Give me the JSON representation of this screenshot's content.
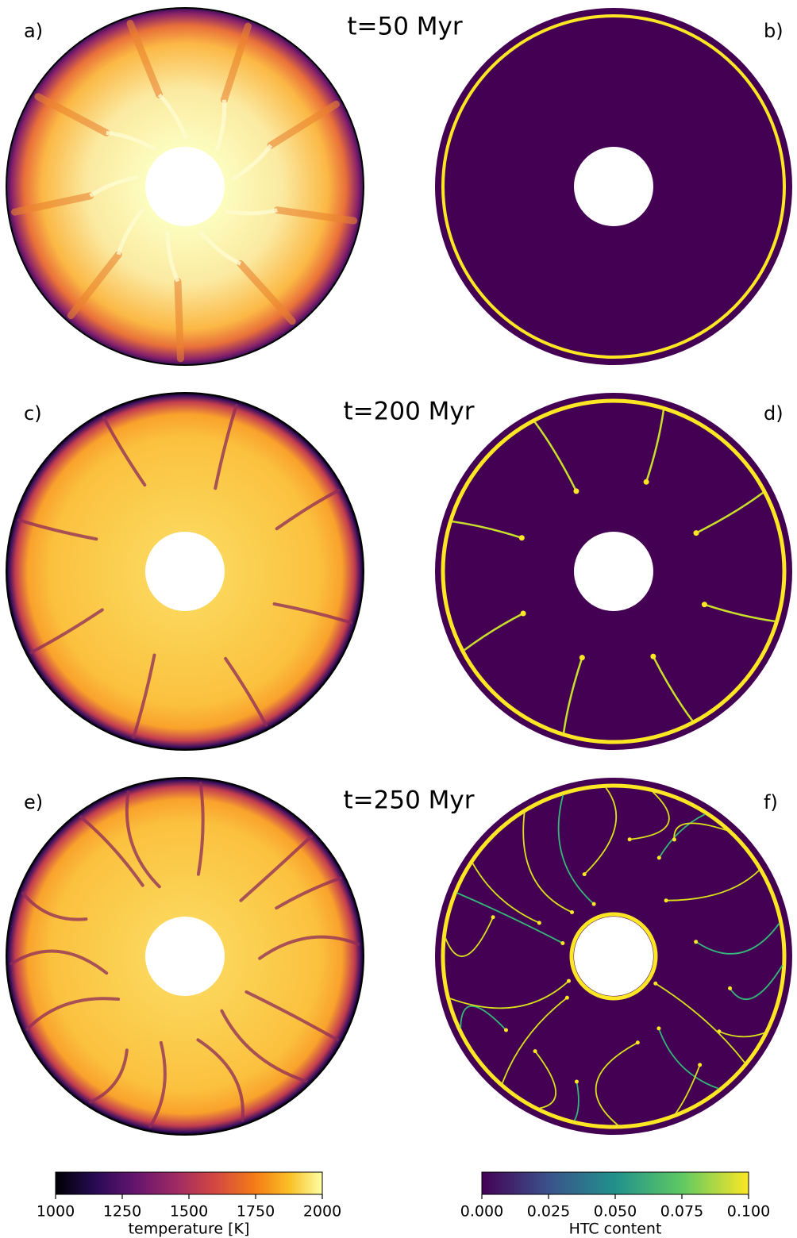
{
  "panels": [
    {
      "label": "a)"
    },
    {
      "label": "b)"
    },
    {
      "label": "c)"
    },
    {
      "label": "d)"
    },
    {
      "label": "e)"
    },
    {
      "label": "f)"
    }
  ],
  "time_labels": [
    "t=50 Myr",
    "t=200 Myr",
    "t=250 Myr"
  ],
  "colorbars": [
    {
      "label": "temperature [K]",
      "lim": [
        1000,
        2000
      ],
      "ticks": [
        1000,
        1250,
        1500,
        1750,
        2000
      ]
    },
    {
      "label": "HTC content",
      "lim": [
        0,
        0.1
      ],
      "ticks": [
        {
          "value": 0,
          "label": "0.000"
        },
        {
          "value": 0.025,
          "label": "0.025"
        },
        {
          "value": 0.05,
          "label": "0.050"
        },
        {
          "value": 0.075,
          "label": "0.075"
        },
        {
          "value": 0.1,
          "label": "0.100"
        }
      ]
    }
  ]
}
